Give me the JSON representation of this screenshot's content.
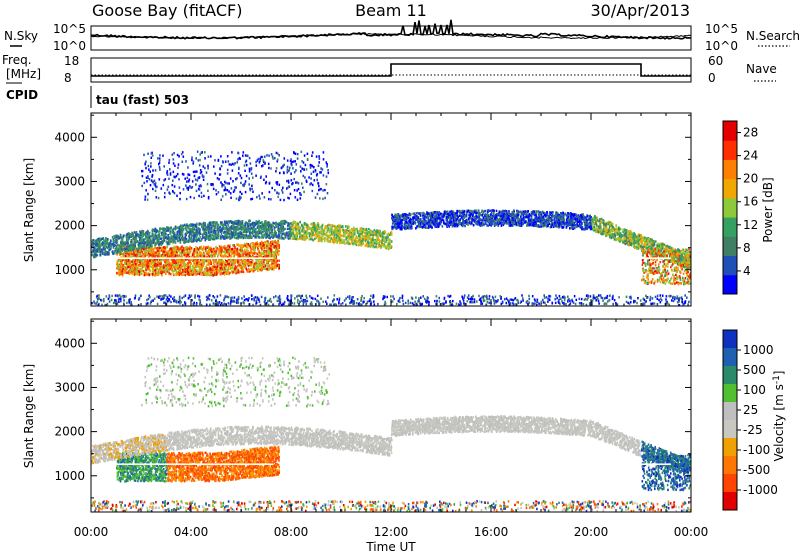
{
  "header": {
    "station": "Goose Bay (fitACF)",
    "beam": "Beam 11",
    "date": "30/Apr/2013"
  },
  "noise_panel": {
    "left_label": "N.Sky",
    "right_label": "N.Search",
    "left_ticks": [
      "10^5",
      "10^0"
    ],
    "right_ticks": [
      "10^5",
      "10^0"
    ]
  },
  "freq_panel": {
    "left_label_1": "Freq.",
    "left_label_2": "[MHz]",
    "right_label": "Nave",
    "left_ticks": [
      "18",
      "8"
    ],
    "right_ticks": [
      "60",
      "0"
    ]
  },
  "cpid": {
    "label": "CPID",
    "value": "tau (fast) 503"
  },
  "colors": {
    "power": [
      "#0000ff",
      "#1f4fb8",
      "#3e7f66",
      "#35a060",
      "#8dc93a",
      "#f0a800",
      "#ff8000",
      "#ff3000",
      "#e40000"
    ],
    "velocity": [
      "#e00000",
      "#ff4400",
      "#ff7700",
      "#f0a000",
      "#c8c8c0",
      "#bfbfbf",
      "#50c030",
      "#2a8a6a",
      "#2060b0",
      "#1030c0"
    ]
  },
  "chart_data": [
    {
      "type": "heatmap",
      "name": "power",
      "ylabel": "Slant Range [km]",
      "xlabel": "",
      "x_ticks": [
        "00:00",
        "04:00",
        "08:00",
        "12:00",
        "16:00",
        "20:00",
        "00:00"
      ],
      "y_ticks": [
        "1000",
        "2000",
        "3000",
        "4000"
      ],
      "xlim_hours": [
        0,
        24
      ],
      "ylim_km": [
        180,
        4550
      ],
      "colorbar": {
        "label": "Power [dB]",
        "ticks": [
          "28",
          "24",
          "20",
          "16",
          "12",
          "8",
          "4"
        ],
        "range": [
          0,
          30
        ]
      }
    },
    {
      "type": "heatmap",
      "name": "velocity",
      "ylabel": "Slant Range [km]",
      "xlabel": "Time UT",
      "x_ticks": [
        "00:00",
        "04:00",
        "08:00",
        "12:00",
        "16:00",
        "20:00",
        "00:00"
      ],
      "y_ticks": [
        "1000",
        "2000",
        "3000",
        "4000"
      ],
      "xlim_hours": [
        0,
        24
      ],
      "ylim_km": [
        180,
        4550
      ],
      "colorbar": {
        "label": "Velocity [m s^-1]",
        "ticks": [
          "1000",
          "500",
          "100",
          "25",
          "-25",
          "-100",
          "-500",
          "-1000"
        ]
      }
    }
  ]
}
